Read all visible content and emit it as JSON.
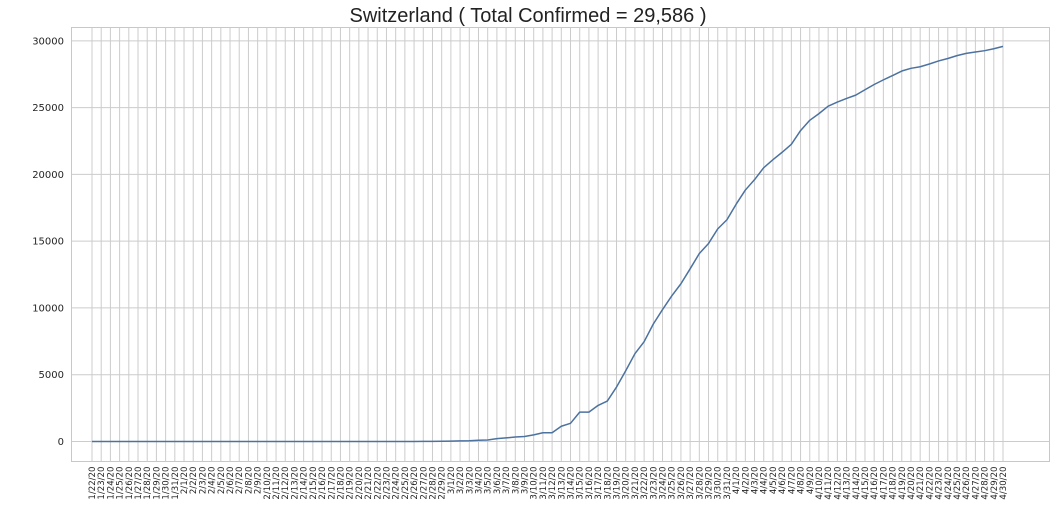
{
  "chart_data": {
    "type": "line",
    "title": "Switzerland ( Total Confirmed = 29,586 )",
    "xlabel": "",
    "ylabel": "",
    "ylim": [
      -1500,
      31000
    ],
    "yticks": [
      0,
      5000,
      10000,
      15000,
      20000,
      25000,
      30000
    ],
    "grid": true,
    "legend": "none",
    "line_color": "#4c72a0",
    "x": [
      "1/22/20",
      "1/23/20",
      "1/24/20",
      "1/25/20",
      "1/26/20",
      "1/27/20",
      "1/28/20",
      "1/29/20",
      "1/30/20",
      "1/31/20",
      "2/1/20",
      "2/2/20",
      "2/3/20",
      "2/4/20",
      "2/5/20",
      "2/6/20",
      "2/7/20",
      "2/8/20",
      "2/9/20",
      "2/10/20",
      "2/11/20",
      "2/12/20",
      "2/13/20",
      "2/14/20",
      "2/15/20",
      "2/16/20",
      "2/17/20",
      "2/18/20",
      "2/19/20",
      "2/20/20",
      "2/21/20",
      "2/22/20",
      "2/23/20",
      "2/24/20",
      "2/25/20",
      "2/26/20",
      "2/27/20",
      "2/28/20",
      "2/29/20",
      "3/1/20",
      "3/2/20",
      "3/3/20",
      "3/4/20",
      "3/5/20",
      "3/6/20",
      "3/7/20",
      "3/8/20",
      "3/9/20",
      "3/10/20",
      "3/11/20",
      "3/12/20",
      "3/13/20",
      "3/14/20",
      "3/15/20",
      "3/16/20",
      "3/17/20",
      "3/18/20",
      "3/19/20",
      "3/20/20",
      "3/21/20",
      "3/22/20",
      "3/23/20",
      "3/24/20",
      "3/25/20",
      "3/26/20",
      "3/27/20",
      "3/28/20",
      "3/29/20",
      "3/30/20",
      "3/31/20",
      "4/1/20",
      "4/2/20",
      "4/3/20",
      "4/4/20",
      "4/5/20",
      "4/6/20",
      "4/7/20",
      "4/8/20",
      "4/9/20",
      "4/10/20",
      "4/11/20",
      "4/12/20",
      "4/13/20",
      "4/14/20",
      "4/15/20",
      "4/16/20",
      "4/17/20",
      "4/18/20",
      "4/19/20",
      "4/20/20",
      "4/21/20",
      "4/22/20",
      "4/23/20",
      "4/24/20",
      "4/25/20",
      "4/26/20",
      "4/27/20",
      "4/28/20",
      "4/29/20",
      "4/30/20"
    ],
    "series": [
      {
        "values": [
          0,
          0,
          0,
          0,
          0,
          0,
          0,
          0,
          0,
          0,
          0,
          0,
          0,
          0,
          0,
          0,
          0,
          0,
          0,
          0,
          0,
          0,
          0,
          0,
          0,
          0,
          0,
          0,
          0,
          0,
          0,
          0,
          0,
          0,
          1,
          1,
          8,
          8,
          18,
          27,
          42,
          56,
          90,
          114,
          214,
          268,
          337,
          374,
          491,
          652,
          652,
          1139,
          1359,
          2200,
          2200,
          2700,
          3028,
          4075,
          5294,
          6575,
          7474,
          8795,
          9877,
          10897,
          11811,
          12928,
          14076,
          14829,
          15922,
          16605,
          17768,
          18827,
          19606,
          20505,
          21100,
          21657,
          22253,
          23280,
          24051,
          24551,
          25107,
          25415,
          25688,
          25936,
          26336,
          26732,
          27078,
          27404,
          27740,
          27944,
          28063,
          28268,
          28496,
          28677,
          28894,
          29061,
          29164,
          29264,
          29407,
          29586
        ]
      }
    ]
  }
}
